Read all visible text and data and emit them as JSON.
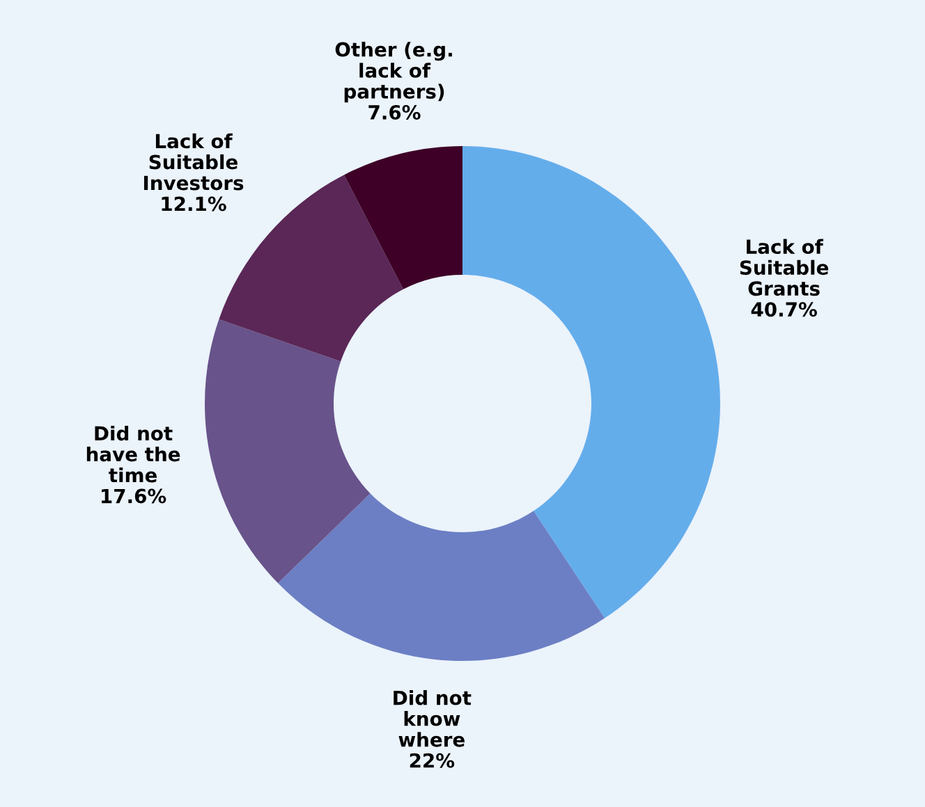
{
  "chart_data": {
    "type": "donut",
    "categories": [
      "Lack of\nSuitable\nGrants",
      "Did not\nknow\nwhere",
      "Did not\nhave the\ntime",
      "Lack of\nSuitable\nInvestors",
      "Other (e.g.\nlack of\npartners)"
    ],
    "values": [
      40.7,
      22,
      17.6,
      12.1,
      7.6
    ],
    "value_labels": [
      "40.7%",
      "22%",
      "17.6%",
      "12.1%",
      "7.6%"
    ],
    "colors": [
      "#64adeb",
      "#6c7fc4",
      "#68538a",
      "#5a2757",
      "#3e0027"
    ],
    "legend": false
  }
}
